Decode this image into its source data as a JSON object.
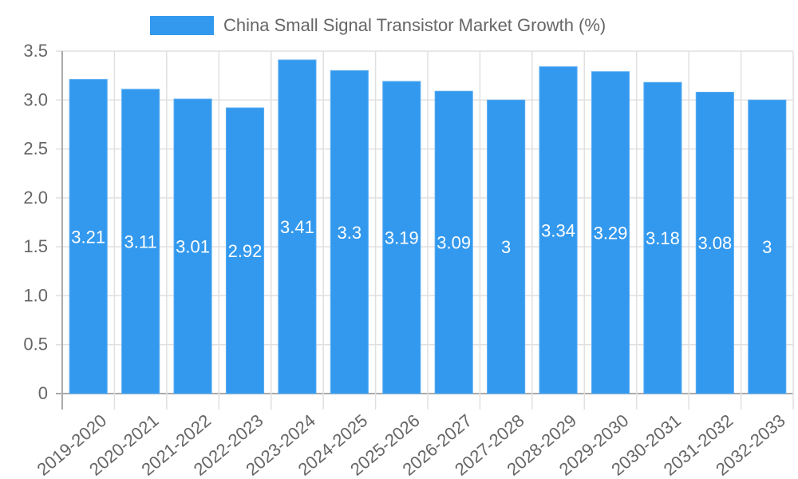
{
  "chart_data": {
    "type": "bar",
    "title": "",
    "legend": {
      "position": "top",
      "entries": [
        "China Small Signal Transistor Market Growth (%)"
      ]
    },
    "categories": [
      "2019-2020",
      "2020-2021",
      "2021-2022",
      "2022-2023",
      "2023-2024",
      "2024-2025",
      "2025-2026",
      "2026-2027",
      "2027-2028",
      "2028-2029",
      "2029-2030",
      "2030-2031",
      "2031-2032",
      "2032-2033"
    ],
    "series": [
      {
        "name": "China Small Signal Transistor Market Growth (%)",
        "color": "#3399ee",
        "values": [
          3.21,
          3.11,
          3.01,
          2.92,
          3.41,
          3.3,
          3.19,
          3.09,
          3,
          3.34,
          3.29,
          3.18,
          3.08,
          3
        ],
        "labels": [
          "3.21",
          "3.11",
          "3.01",
          "2.92",
          "3.41",
          "3.3",
          "3.19",
          "3.09",
          "3",
          "3.34",
          "3.29",
          "3.18",
          "3.08",
          "3"
        ]
      }
    ],
    "xlabel": "",
    "ylabel": "",
    "ylim": [
      0,
      3.5
    ],
    "yticks": [
      "0",
      "0.5",
      "1.0",
      "1.5",
      "2.0",
      "2.5",
      "3.0",
      "3.5"
    ],
    "grid": true
  }
}
